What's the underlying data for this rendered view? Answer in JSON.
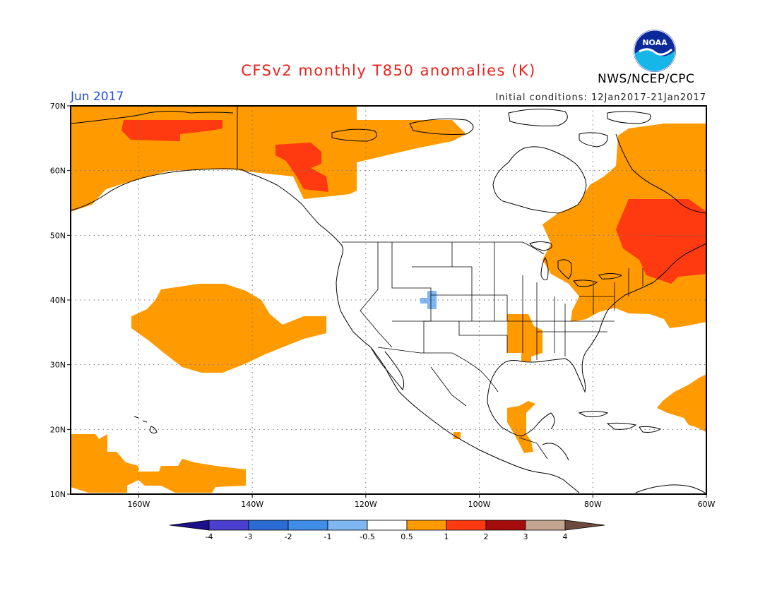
{
  "header": {
    "title": "CFSv2 monthly T850 anomalies (K)",
    "agency": "NWS/NCEP/CPC",
    "month": "Jun 2017",
    "initial_conditions": "Initial conditions: 12Jan2017-21Jan2017",
    "logo_text": "NOAA"
  },
  "map": {
    "lon_range": [
      -172,
      -60
    ],
    "lat_range": [
      10,
      70
    ],
    "lon_ticks": [
      {
        "lon": -160,
        "label": "160W"
      },
      {
        "lon": -140,
        "label": "140W"
      },
      {
        "lon": -120,
        "label": "120W"
      },
      {
        "lon": -100,
        "label": "100W"
      },
      {
        "lon": -80,
        "label": "80W"
      },
      {
        "lon": -60,
        "label": "60W"
      }
    ],
    "lat_ticks": [
      {
        "lat": 70,
        "label": "70N"
      },
      {
        "lat": 60,
        "label": "60N"
      },
      {
        "lat": 50,
        "label": "50N"
      },
      {
        "lat": 40,
        "label": "40N"
      },
      {
        "lat": 30,
        "label": "30N"
      },
      {
        "lat": 20,
        "label": "20N"
      },
      {
        "lat": 10,
        "label": "10N"
      }
    ],
    "grid": "dotted"
  },
  "colorbar": {
    "labels": [
      "-4",
      "-3",
      "-2",
      "-1",
      "-0.5",
      "0.5",
      "1",
      "2",
      "3",
      "4"
    ],
    "colors": [
      "#1e0f8a",
      "#4a3fcf",
      "#2a6bd4",
      "#3f8ee8",
      "#7fb7f2",
      "#ffffff",
      "#ff9a00",
      "#ff3a10",
      "#a50d0d",
      "#c4a592",
      "#6d4a3e"
    ]
  },
  "anomaly_regions": [
    {
      "level": "+0.5 to +1",
      "color": "#ff9a00",
      "area": "Alaska and Yukon"
    },
    {
      "level": "+1 to +2",
      "color": "#ff3a10",
      "area": "Northern Alaska"
    },
    {
      "level": "+1 to +2",
      "color": "#ff3a10",
      "area": "Yukon"
    },
    {
      "level": "+0.5 to +1",
      "color": "#ff9a00",
      "area": "Eastern Canada and Northeast US"
    },
    {
      "level": "+1 to +2",
      "color": "#ff3a10",
      "area": "Quebec"
    },
    {
      "level": "+0.5 to +1",
      "color": "#ff9a00",
      "area": "Northeast Pacific"
    },
    {
      "level": "+0.5 to +1",
      "color": "#ff9a00",
      "area": "Tropical Pacific near Hawaii"
    },
    {
      "level": "+0.5 to +1",
      "color": "#ff9a00",
      "area": "Lower Mississippi Valley"
    },
    {
      "level": "+0.5 to +1",
      "color": "#ff9a00",
      "area": "Southern Mexico"
    },
    {
      "level": "+0.5 to +1",
      "color": "#ff9a00",
      "area": "Western Atlantic"
    },
    {
      "level": "-0.5 to -1",
      "color": "#7fb7f2",
      "area": "Colorado"
    }
  ]
}
